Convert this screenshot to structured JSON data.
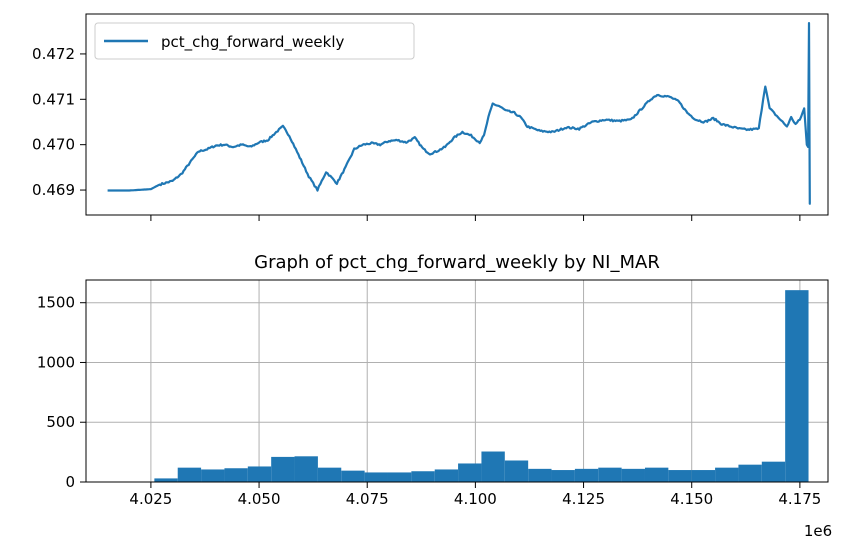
{
  "chart_data": [
    {
      "type": "line",
      "title": "",
      "xlabel": "",
      "ylabel": "",
      "legend": {
        "placement": "top-left",
        "entries": [
          "pct_chg_forward_weekly"
        ]
      },
      "ylim": [
        0.46845,
        0.47288
      ],
      "yticks": [
        0.469,
        0.47,
        0.471,
        0.472
      ],
      "ytick_labels": [
        "0.469",
        "0.470",
        "0.471",
        "0.472"
      ],
      "grid": false,
      "series": [
        {
          "name": "pct_chg_forward_weekly",
          "color": "#1f77b4",
          "x": [
            4015000,
            4020000,
            4025000,
            4027000,
            4030000,
            4032000,
            4034000,
            4036000,
            4038000,
            4040000,
            4042000,
            4044000,
            4046000,
            4048000,
            4050000,
            4052000,
            4054000,
            4055500,
            4057000,
            4058500,
            4060000,
            4061500,
            4062500,
            4063500,
            4064500,
            4065500,
            4066500,
            4068000,
            4070000,
            4072000,
            4074000,
            4076000,
            4078000,
            4080000,
            4082000,
            4084000,
            4086000,
            4088000,
            4089500,
            4091000,
            4093000,
            4095000,
            4097000,
            4099000,
            4101000,
            4102000,
            4103000,
            4104000,
            4105500,
            4107000,
            4109000,
            4110500,
            4112000,
            4115000,
            4118000,
            4121000,
            4124000,
            4127000,
            4130000,
            4133000,
            4136000,
            4139000,
            4140500,
            4142000,
            4145000,
            4147000,
            4149000,
            4151000,
            4153000,
            4155000,
            4157000,
            4159000,
            4161000,
            4163000,
            4165500,
            4166500,
            4167000,
            4168000,
            4169000,
            4170000,
            4171000,
            4172000,
            4173000,
            4174000,
            4175000,
            4176000,
            4176600,
            4176900,
            4177100,
            4177300,
            4177500
          ],
          "y": [
            0.46899,
            0.46899,
            0.46902,
            0.46912,
            0.4692,
            0.46935,
            0.4696,
            0.46985,
            0.4699,
            0.46998,
            0.47,
            0.46995,
            0.47,
            0.46995,
            0.47005,
            0.4701,
            0.47028,
            0.4704,
            0.4702,
            0.4699,
            0.4696,
            0.4693,
            0.46915,
            0.469,
            0.4692,
            0.4694,
            0.4693,
            0.46915,
            0.4695,
            0.4699,
            0.47,
            0.47003,
            0.47,
            0.47008,
            0.4701,
            0.47005,
            0.47015,
            0.4699,
            0.4698,
            0.46985,
            0.46995,
            0.47015,
            0.47028,
            0.4702,
            0.47005,
            0.4702,
            0.4706,
            0.4709,
            0.47085,
            0.47075,
            0.4707,
            0.4706,
            0.4704,
            0.4703,
            0.47028,
            0.47038,
            0.47035,
            0.4705,
            0.47055,
            0.47052,
            0.47055,
            0.47085,
            0.471,
            0.4711,
            0.47105,
            0.47095,
            0.4707,
            0.47055,
            0.4705,
            0.47058,
            0.47045,
            0.4704,
            0.47035,
            0.47033,
            0.47035,
            0.471,
            0.4713,
            0.4708,
            0.4707,
            0.4706,
            0.4705,
            0.4704,
            0.4706,
            0.47045,
            0.47055,
            0.4708,
            0.47,
            0.46995,
            0.47268,
            0.4687,
            0.4687
          ]
        }
      ]
    },
    {
      "type": "bar",
      "title": "Graph of pct_chg_forward_weekly by NI_MAR",
      "xlabel": "",
      "ylabel": "",
      "x_offset_label": "1e6",
      "xlim": [
        4010000,
        4181500
      ],
      "xticks": [
        4025000,
        4050000,
        4075000,
        4100000,
        4125000,
        4150000,
        4175000
      ],
      "xtick_labels": [
        "4.025",
        "4.050",
        "4.075",
        "4.100",
        "4.125",
        "4.150",
        "4.175"
      ],
      "ylim": [
        0,
        1690
      ],
      "yticks": [
        0,
        500,
        1000,
        1500
      ],
      "ytick_labels": [
        "0",
        "500",
        "1000",
        "1500"
      ],
      "grid": true,
      "bar_color": "#1f77b4",
      "bin_edges": [
        4015000,
        4020400,
        4025800,
        4031200,
        4036600,
        4042000,
        4047400,
        4052800,
        4058200,
        4063600,
        4069000,
        4074400,
        4079800,
        4085200,
        4090600,
        4096000,
        4101400,
        4106800,
        4112200,
        4117600,
        4123000,
        4128400,
        4133800,
        4139200,
        4144600,
        4150000,
        4155400,
        4160800,
        4166200,
        4171600,
        4177000
      ],
      "values": [
        0,
        0,
        30,
        120,
        105,
        115,
        130,
        210,
        215,
        120,
        95,
        80,
        80,
        90,
        105,
        155,
        255,
        180,
        110,
        100,
        110,
        120,
        110,
        120,
        100,
        100,
        120,
        145,
        170,
        1605
      ]
    }
  ]
}
